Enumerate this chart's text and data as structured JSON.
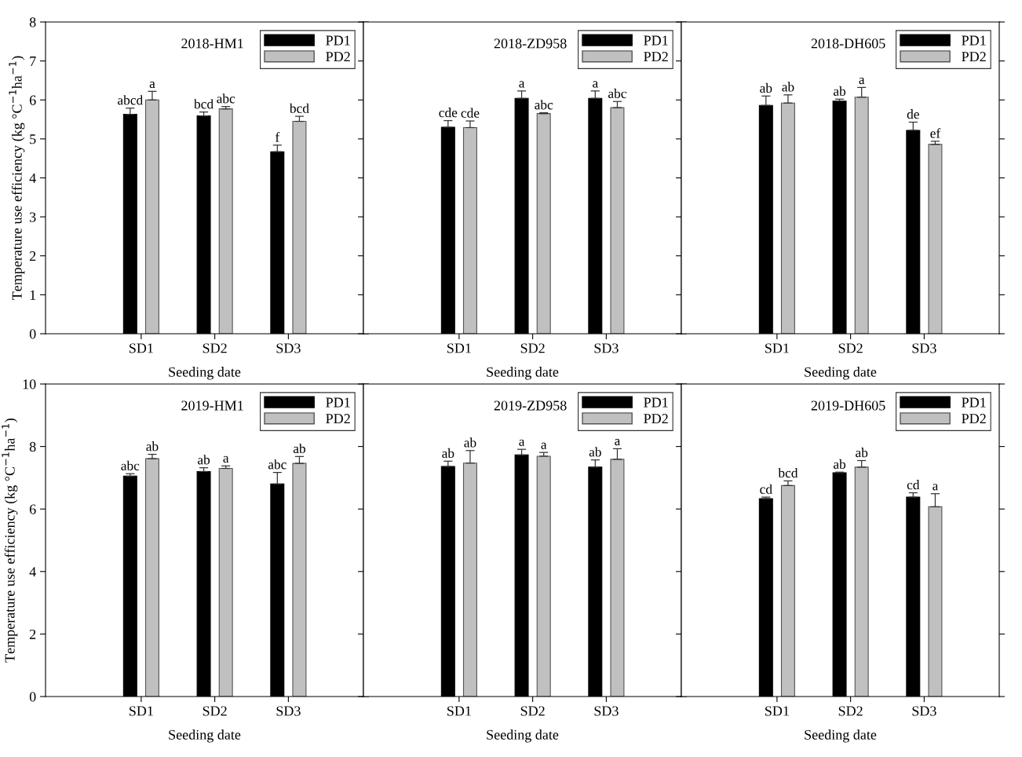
{
  "chart_data": [
    {
      "type": "bar",
      "title": "2018-HM1",
      "xlabel": "Seeding date",
      "ylabel": "Temperature use efficiency (kg °C$^{−1}$ha$^{−1}$)",
      "categories": [
        "SD1",
        "SD2",
        "SD3"
      ],
      "ylim": [
        0,
        8
      ],
      "yticks": [
        0,
        1,
        2,
        3,
        4,
        5,
        6,
        7,
        8
      ],
      "legend": "top right",
      "grid": false,
      "series": [
        {
          "name": "PD1",
          "color": "#000000",
          "values": [
            5.63,
            5.59,
            4.67
          ],
          "errors": [
            [
              5.63,
              5.79
            ],
            [
              5.59,
              5.69
            ],
            [
              4.67,
              4.84
            ]
          ],
          "value_labels": [
            "abcd",
            "bcd",
            "f"
          ]
        },
        {
          "name": "PD2",
          "color": "#c0c0c0",
          "values": [
            6.0,
            5.77,
            5.45
          ],
          "errors": [
            [
              6.0,
              6.22
            ],
            [
              5.77,
              5.83
            ],
            [
              5.45,
              5.58
            ]
          ],
          "value_labels": [
            "a",
            "abc",
            "bcd"
          ]
        }
      ]
    },
    {
      "type": "bar",
      "title": "2018-ZD958",
      "xlabel": "Seeding date",
      "categories": [
        "SD1",
        "SD2",
        "SD3"
      ],
      "ylim": [
        0,
        8
      ],
      "yticks": [
        0,
        1,
        2,
        3,
        4,
        5,
        6,
        7,
        8
      ],
      "tick_labels": "x",
      "legend": "top right",
      "grid": false,
      "series": [
        {
          "name": "PD1",
          "color": "#000000",
          "values": [
            5.3,
            6.04,
            6.04
          ],
          "errors": [
            [
              5.3,
              5.47
            ],
            [
              6.04,
              6.23
            ],
            [
              6.04,
              6.23
            ]
          ],
          "value_labels": [
            "cde",
            "a",
            "a"
          ]
        },
        {
          "name": "PD2",
          "color": "#c0c0c0",
          "values": [
            5.29,
            5.65,
            5.8
          ],
          "errors": [
            [
              5.29,
              5.46
            ],
            [
              5.65,
              5.67
            ],
            [
              5.8,
              5.96
            ]
          ],
          "value_labels": [
            "cde",
            "abc",
            "abc"
          ]
        }
      ]
    },
    {
      "type": "bar",
      "title": "2018-DH605",
      "xlabel": "Seeding date",
      "categories": [
        "SD1",
        "SD2",
        "SD3"
      ],
      "ylim": [
        0,
        8
      ],
      "yticks": [
        0,
        1,
        2,
        3,
        4,
        5,
        6,
        7,
        8
      ],
      "tick_labels": "x",
      "legend": "top right",
      "grid": false,
      "series": [
        {
          "name": "PD1",
          "color": "#000000",
          "values": [
            5.86,
            5.97,
            5.22
          ],
          "errors": [
            [
              5.86,
              6.1
            ],
            [
              5.97,
              6.02
            ],
            [
              5.22,
              5.43
            ]
          ],
          "value_labels": [
            "ab",
            "ab",
            "de"
          ]
        },
        {
          "name": "PD2",
          "color": "#c0c0c0",
          "values": [
            5.92,
            6.07,
            4.86
          ],
          "errors": [
            [
              5.92,
              6.13
            ],
            [
              6.07,
              6.32
            ],
            [
              4.86,
              4.94
            ]
          ],
          "value_labels": [
            "ab",
            "a",
            "ef"
          ]
        }
      ]
    },
    {
      "type": "bar",
      "title": "2019-HM1",
      "xlabel": "Seeding date",
      "ylabel": "Temperature use efficiency (kg °C$^{−1}$ha$^{−1}$)",
      "categories": [
        "SD1",
        "SD2",
        "SD3"
      ],
      "ylim": [
        0,
        10
      ],
      "yticks": [
        0,
        2,
        4,
        6,
        8,
        10
      ],
      "legend": "top right",
      "grid": false,
      "series": [
        {
          "name": "PD1",
          "color": "#000000",
          "values": [
            7.05,
            7.2,
            6.8
          ],
          "errors": [
            [
              7.05,
              7.13
            ],
            [
              7.2,
              7.32
            ],
            [
              6.8,
              7.17
            ]
          ],
          "value_labels": [
            "abc",
            "ab",
            "abc"
          ]
        },
        {
          "name": "PD2",
          "color": "#c0c0c0",
          "values": [
            7.61,
            7.3,
            7.46
          ],
          "errors": [
            [
              7.61,
              7.75
            ],
            [
              7.3,
              7.38
            ],
            [
              7.46,
              7.68
            ]
          ],
          "value_labels": [
            "ab",
            "a",
            "ab"
          ]
        }
      ]
    },
    {
      "type": "bar",
      "title": "2019-ZD958",
      "xlabel": "Seeding date",
      "categories": [
        "SD1",
        "SD2",
        "SD3"
      ],
      "ylim": [
        0,
        10
      ],
      "yticks": [
        0,
        2,
        4,
        6,
        8,
        10
      ],
      "tick_labels": "x",
      "legend": "top right",
      "grid": false,
      "series": [
        {
          "name": "PD1",
          "color": "#000000",
          "values": [
            7.36,
            7.73,
            7.34
          ],
          "errors": [
            [
              7.36,
              7.53
            ],
            [
              7.73,
              7.91
            ],
            [
              7.34,
              7.57
            ]
          ],
          "value_labels": [
            "ab",
            "a",
            "ab"
          ]
        },
        {
          "name": "PD2",
          "color": "#c0c0c0",
          "values": [
            7.47,
            7.69,
            7.59
          ],
          "errors": [
            [
              7.47,
              7.87
            ],
            [
              7.69,
              7.81
            ],
            [
              7.59,
              7.93
            ]
          ],
          "value_labels": [
            "ab",
            "a",
            "a"
          ]
        }
      ]
    },
    {
      "type": "bar",
      "title": "2019-DH605",
      "xlabel": "Seeding date",
      "categories": [
        "SD1",
        "SD2",
        "SD3"
      ],
      "ylim": [
        0,
        10
      ],
      "yticks": [
        0,
        2,
        4,
        6,
        8,
        10
      ],
      "tick_labels": "x",
      "legend": "top right",
      "grid": false,
      "series": [
        {
          "name": "PD1",
          "color": "#000000",
          "values": [
            6.33,
            7.16,
            6.38
          ],
          "errors": [
            [
              6.33,
              6.38
            ],
            [
              7.16,
              7.18
            ],
            [
              6.38,
              6.52
            ]
          ],
          "value_labels": [
            "cd",
            "ab",
            "cd"
          ]
        },
        {
          "name": "PD2",
          "color": "#c0c0c0",
          "values": [
            6.75,
            7.34,
            6.07
          ],
          "errors": [
            [
              6.75,
              6.9
            ],
            [
              7.34,
              7.55
            ],
            [
              6.07,
              6.49
            ]
          ],
          "value_labels": [
            "bcd",
            "ab",
            "a"
          ]
        }
      ]
    }
  ]
}
